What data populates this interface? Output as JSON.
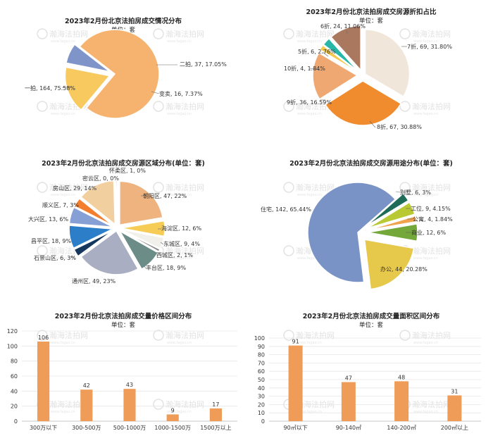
{
  "watermark": {
    "name": "瀚海法拍网",
    "url": "www.fagao.cn"
  },
  "chart_data": [
    {
      "id": "c1",
      "type": "pie",
      "title": "2023年2月份北京法拍房成交情况分布",
      "subtitle": "单位：套",
      "slices": [
        {
          "label": "一拍",
          "value": 164,
          "pct": "75.58%",
          "color": "#F5B36F"
        },
        {
          "label": "二拍",
          "value": 37,
          "pct": "17.05%",
          "color": "#F7C95E"
        },
        {
          "label": "变卖",
          "value": 16,
          "pct": "7.37%",
          "color": "#7F95C9"
        }
      ]
    },
    {
      "id": "c2",
      "type": "pie",
      "title": "2023年2月份北京法拍房成交房源折扣占比",
      "subtitle": "单位：套",
      "slices": [
        {
          "label": "7折",
          "value": 69,
          "pct": "31.80%",
          "color": "#F1E6DA"
        },
        {
          "label": "8折",
          "value": 67,
          "pct": "30.88%",
          "color": "#F08C2E"
        },
        {
          "label": "9折",
          "value": 36,
          "pct": "16.59%",
          "color": "#EFA872"
        },
        {
          "label": "10折",
          "value": 4,
          "pct": "1.84%",
          "color": "#F3C84B"
        },
        {
          "label": "5折",
          "value": 6,
          "pct": "2.76%",
          "color": "#27B7A9"
        },
        {
          "label": "6折",
          "value": 24,
          "pct": "11.06%",
          "color": "#A9785F"
        }
      ]
    },
    {
      "id": "c3",
      "type": "pie",
      "title": "2023年2月份北京法拍房成交房源区域分布(单位：套)",
      "slices": [
        {
          "label": "朝阳区",
          "value": 47,
          "pct": "22%",
          "color": "#EFB380"
        },
        {
          "label": "海淀区",
          "value": 12,
          "pct": "6%",
          "color": "#F6CC56"
        },
        {
          "label": "东城区",
          "value": 9,
          "pct": "4%",
          "color": "#F1F0EA"
        },
        {
          "label": "西城区",
          "value": 2,
          "pct": "1%",
          "color": "#8C8C8C"
        },
        {
          "label": "丰台区",
          "value": 18,
          "pct": "9%",
          "color": "#6C8D87"
        },
        {
          "label": "通州区",
          "value": 49,
          "pct": "23%",
          "color": "#A9AEC2"
        },
        {
          "label": "石景山区",
          "value": 6,
          "pct": "3%",
          "color": "#16375E"
        },
        {
          "label": "昌平区",
          "value": 18,
          "pct": "9%",
          "color": "#2D7EC8"
        },
        {
          "label": "大兴区",
          "value": 13,
          "pct": "6%",
          "color": "#869FD4"
        },
        {
          "label": "顺义区",
          "value": 7,
          "pct": "3%",
          "color": "#F37E2E"
        },
        {
          "label": "房山区",
          "value": 29,
          "pct": "14%",
          "color": "#F2CF9E"
        },
        {
          "label": "密云区",
          "value": 0,
          "pct": "0%",
          "color": "#B8B8B8"
        },
        {
          "label": "怀柔区",
          "value": 1,
          "pct": "0%",
          "color": "#D9A05A"
        }
      ]
    },
    {
      "id": "c4",
      "type": "pie",
      "title": "2023年2月份北京法拍房成交房源用途分布(单位：套)",
      "slices": [
        {
          "label": "住宅",
          "value": 142,
          "pct": "65.44%",
          "color": "#7A93C6"
        },
        {
          "label": "办公",
          "value": 44,
          "pct": "20.28%",
          "color": "#E6C84A"
        },
        {
          "label": "商业",
          "value": 12,
          "pct": "6%",
          "color": "#74A83A"
        },
        {
          "label": "公寓",
          "value": 4,
          "pct": "1.84%",
          "color": "#F0A24C"
        },
        {
          "label": "工位",
          "value": 9,
          "pct": "4.15%",
          "color": "#B9C933"
        },
        {
          "label": "别墅",
          "value": 6,
          "pct": "3%",
          "color": "#1E6B57"
        }
      ]
    },
    {
      "id": "c5",
      "type": "bar",
      "title": "2023年2月份北京法拍房成交量价格区间分布",
      "subtitle": "单位：套",
      "categories": [
        "300万以下",
        "300-500万",
        "500-1000万",
        "1000-1500万",
        "1500万以上"
      ],
      "values": [
        106,
        42,
        43,
        9,
        17
      ],
      "ylim": [
        0,
        120
      ],
      "yticks": [
        0,
        20,
        40,
        60,
        80,
        100,
        120
      ],
      "color": "#EE9C58"
    },
    {
      "id": "c6",
      "type": "bar",
      "title": "2023年2月份北京法拍房成交量面积区间分布",
      "subtitle": "单位：套",
      "categories": [
        "90㎡以下",
        "90-140㎡",
        "140-200㎡",
        "200㎡以上"
      ],
      "values": [
        91,
        47,
        48,
        31
      ],
      "ylim": [
        0,
        100
      ],
      "yticks": [
        0,
        10,
        20,
        30,
        40,
        50,
        60,
        70,
        80,
        90,
        100
      ],
      "color": "#EE9C58"
    }
  ]
}
